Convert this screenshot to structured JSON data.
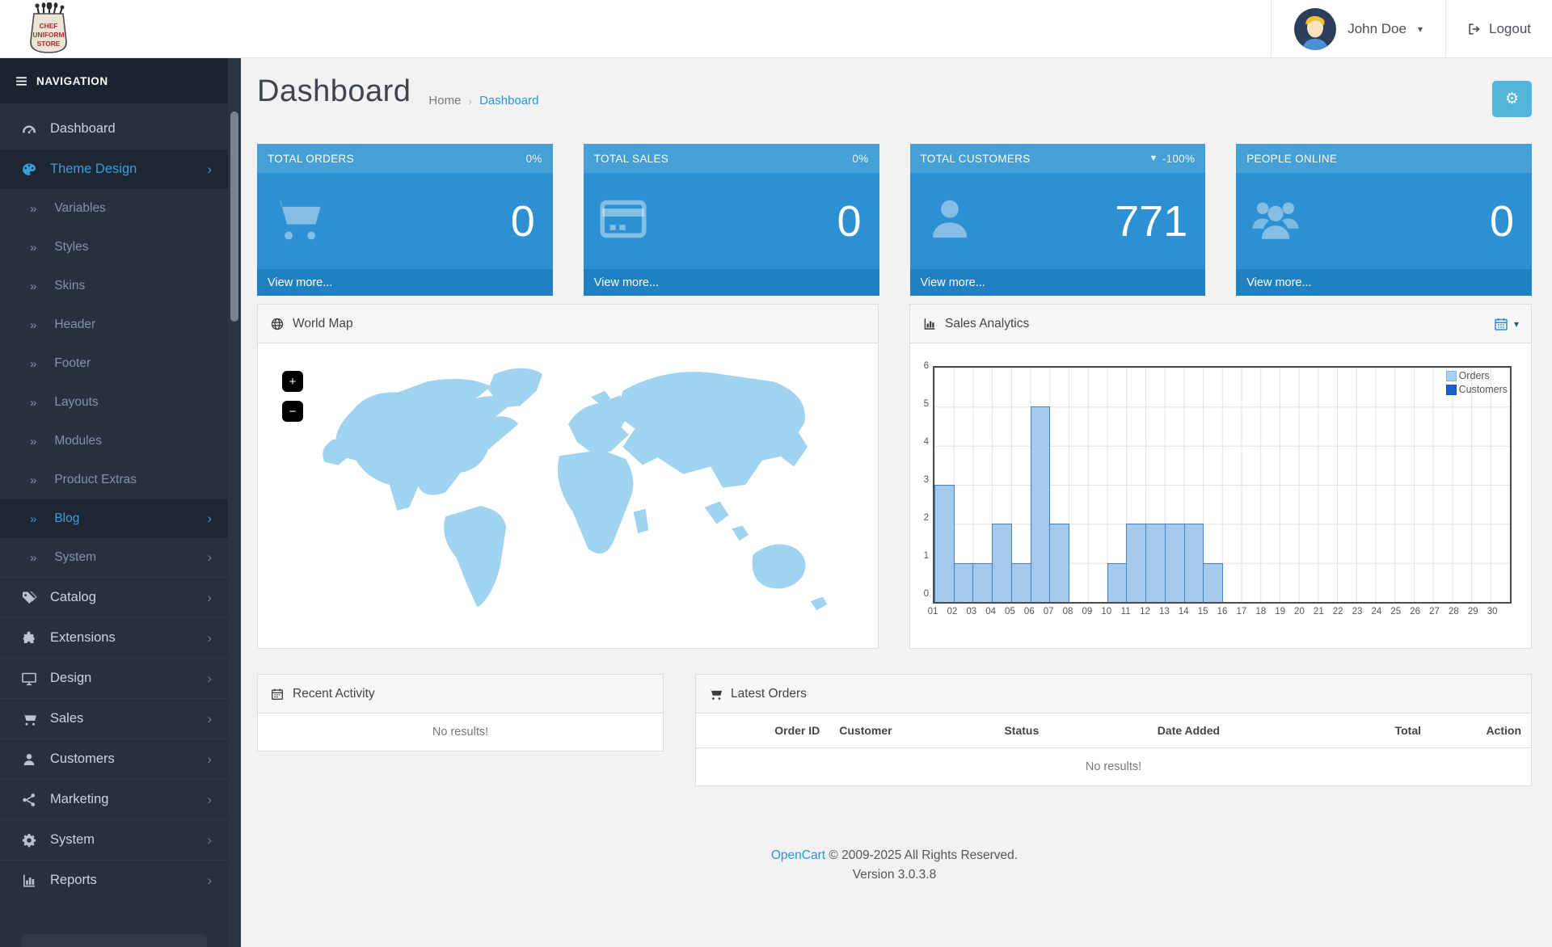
{
  "logo": {
    "line1": "CHEF",
    "line2": "UNIFORM",
    "line3": "STORE"
  },
  "header": {
    "user_name": "John Doe",
    "caret": "▾",
    "logout_label": "Logout"
  },
  "sidebar": {
    "nav_label": "NAVIGATION",
    "items": [
      {
        "label": "Dashboard",
        "icon": "dashboard",
        "type": "main",
        "active": false,
        "chevron": false
      },
      {
        "label": "Theme Design",
        "icon": "theme-design",
        "type": "main",
        "active": true,
        "chevron": true
      },
      {
        "label": "Variables",
        "type": "sub",
        "active": false,
        "chevron": false
      },
      {
        "label": "Styles",
        "type": "sub",
        "active": false,
        "chevron": false
      },
      {
        "label": "Skins",
        "type": "sub",
        "active": false,
        "chevron": false
      },
      {
        "label": "Header",
        "type": "sub",
        "active": false,
        "chevron": false
      },
      {
        "label": "Footer",
        "type": "sub",
        "active": false,
        "chevron": false
      },
      {
        "label": "Layouts",
        "type": "sub",
        "active": false,
        "chevron": false
      },
      {
        "label": "Modules",
        "type": "sub",
        "active": false,
        "chevron": false
      },
      {
        "label": "Product Extras",
        "type": "sub",
        "active": false,
        "chevron": false
      },
      {
        "label": "Blog",
        "type": "sub",
        "active": true,
        "chevron": true
      },
      {
        "label": "System",
        "type": "sub",
        "active": false,
        "chevron": true
      },
      {
        "label": "Catalog",
        "icon": "catalog",
        "type": "main",
        "active": false,
        "chevron": true
      },
      {
        "label": "Extensions",
        "icon": "extensions",
        "type": "main",
        "active": false,
        "chevron": true
      },
      {
        "label": "Design",
        "icon": "design",
        "type": "main",
        "active": false,
        "chevron": true
      },
      {
        "label": "Sales",
        "icon": "sales",
        "type": "main",
        "active": false,
        "chevron": true
      },
      {
        "label": "Customers",
        "icon": "customers",
        "type": "main",
        "active": false,
        "chevron": true
      },
      {
        "label": "Marketing",
        "icon": "marketing",
        "type": "main",
        "active": false,
        "chevron": true
      },
      {
        "label": "System",
        "icon": "system",
        "type": "main",
        "active": false,
        "chevron": true
      },
      {
        "label": "Reports",
        "icon": "reports",
        "type": "main",
        "active": false,
        "chevron": true
      }
    ]
  },
  "page": {
    "title": "Dashboard",
    "breadcrumb_home": "Home",
    "breadcrumb_sep": "›",
    "breadcrumb_current": "Dashboard"
  },
  "tiles": [
    {
      "title": "TOTAL ORDERS",
      "percent": "0%",
      "caret": false,
      "value": "0",
      "icon": "cart-big",
      "view_more": "View more..."
    },
    {
      "title": "TOTAL SALES",
      "percent": "0%",
      "caret": false,
      "value": "0",
      "icon": "credit-card",
      "view_more": "View more..."
    },
    {
      "title": "TOTAL CUSTOMERS",
      "percent": "-100%",
      "caret": true,
      "value": "771",
      "icon": "person-big",
      "view_more": "View more..."
    },
    {
      "title": "PEOPLE ONLINE",
      "percent": "",
      "caret": false,
      "value": "0",
      "icon": "people-big",
      "view_more": "View more..."
    }
  ],
  "world_map": {
    "title": "World Map",
    "zoom_in": "+",
    "zoom_out": "−"
  },
  "sales_panel": {
    "title": "Sales Analytics",
    "calendar_caret": "▾"
  },
  "chart_data": {
    "type": "bar",
    "title": "Sales Analytics",
    "x": [
      "01",
      "02",
      "03",
      "04",
      "05",
      "06",
      "07",
      "08",
      "09",
      "10",
      "11",
      "12",
      "13",
      "14",
      "15",
      "16",
      "17",
      "18",
      "19",
      "20",
      "21",
      "22",
      "23",
      "24",
      "25",
      "26",
      "27",
      "28",
      "29",
      "30"
    ],
    "series": [
      {
        "name": "Orders",
        "color": "#a3d4f5",
        "border": "#7db5dd",
        "values": [
          3,
          1,
          1,
          2,
          1,
          5,
          2,
          0,
          0,
          1,
          2,
          2,
          2,
          2,
          1,
          0,
          0,
          0,
          0,
          0,
          0,
          0,
          0,
          0,
          0,
          0,
          0,
          0,
          0,
          0
        ]
      },
      {
        "name": "Customers",
        "color": "#1a5fd0",
        "border": "#1450b8",
        "values": [
          0,
          0,
          0,
          0,
          0,
          0,
          0,
          0,
          0,
          0,
          0,
          0,
          0,
          0,
          0,
          0,
          0,
          0,
          0,
          0,
          0,
          0,
          0,
          0,
          0,
          0,
          0,
          0,
          0,
          0
        ]
      }
    ],
    "bar_fill": "#a5c9ec",
    "bar_border": "#4880c0",
    "ylim": [
      0,
      6
    ],
    "yticks": [
      6,
      5,
      4,
      3,
      2,
      1,
      0
    ],
    "grid": true,
    "legend_position": "top-right"
  },
  "recent_activity": {
    "title": "Recent Activity",
    "empty": "No results!"
  },
  "latest_orders": {
    "title": "Latest Orders",
    "columns": [
      {
        "label": "Order ID",
        "align": "right",
        "width": "16%"
      },
      {
        "label": "Customer",
        "align": "left",
        "width": "14%"
      },
      {
        "label": "Status",
        "align": "center",
        "width": "18%"
      },
      {
        "label": "Date Added",
        "align": "center",
        "width": "22%"
      },
      {
        "label": "Total",
        "align": "right",
        "width": "18%"
      },
      {
        "label": "Action",
        "align": "right",
        "width": "12%"
      }
    ],
    "empty": "No results!"
  },
  "footer": {
    "link_text": "OpenCart",
    "copyright_rest": " © 2009-2025 All Rights Reserved.",
    "version": "Version 3.0.3.8"
  },
  "colors": {
    "accent_blue": "#2a95d5",
    "tile_header": "#46a0d8",
    "tile_body": "#2c90d3",
    "tile_footer": "#1f80c2",
    "sidebar_bg": "#27303f",
    "map_land": "#9fd3f0",
    "gear_button": "#52b5da"
  }
}
